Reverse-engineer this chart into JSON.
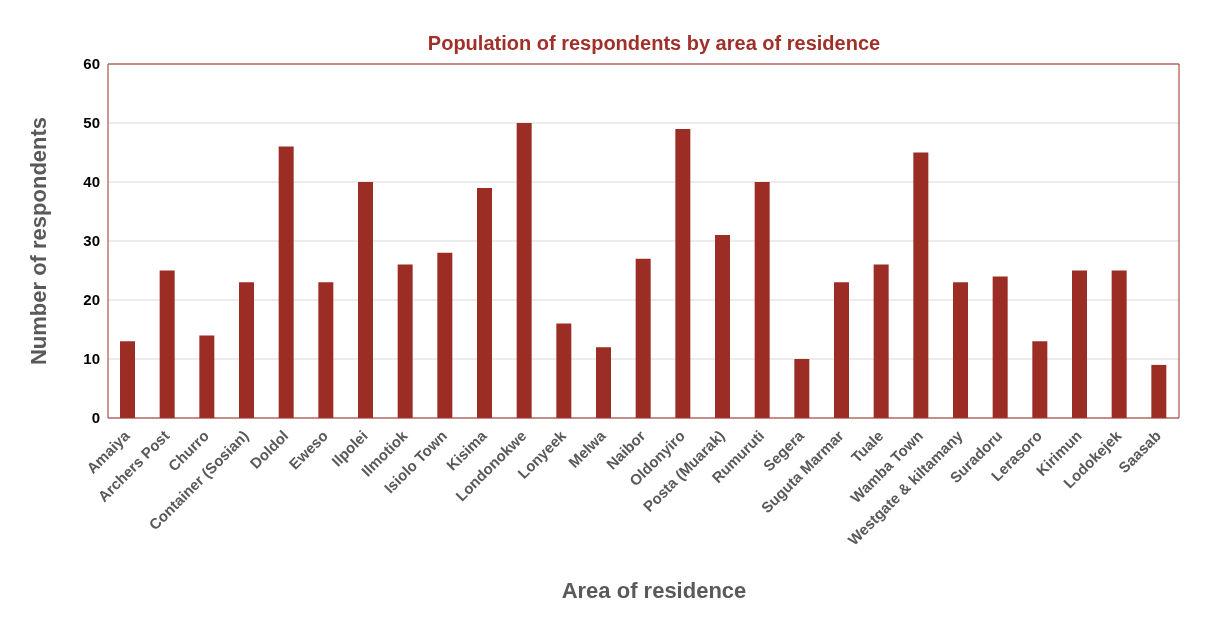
{
  "chart_data": {
    "type": "bar",
    "title": "Population of respondents by area of residence",
    "xlabel": "Area of residence",
    "ylabel": "Number of respondents",
    "categories": [
      "Amaiya",
      "Archers Post",
      "Churro",
      "Container (Sosian)",
      "Doldol",
      "Eweso",
      "Ilpolei",
      "Ilmotiok",
      "Isiolo Town",
      "Kisima",
      "Londonokwe",
      "Lonyeek",
      "Melwa",
      "Naibor",
      "Oldonyiro",
      "Posta (Muarak)",
      "Rumuruti",
      "Segera",
      "Suguta Marmar",
      "Tuale",
      "Wamba Town",
      "Westgate & kiltamany",
      "Suradoru",
      "Lerasoro",
      "Kirimun",
      "Lodokejek",
      "Saasab"
    ],
    "values": [
      13,
      25,
      14,
      23,
      46,
      23,
      40,
      26,
      28,
      39,
      50,
      16,
      12,
      27,
      49,
      31,
      40,
      10,
      23,
      26,
      45,
      23,
      24,
      13,
      25,
      25,
      9
    ],
    "color": "#9b2d25",
    "ylim": [
      0,
      60
    ],
    "yticks": [
      0,
      10,
      20,
      30,
      40,
      50,
      60
    ],
    "grid": "y"
  }
}
